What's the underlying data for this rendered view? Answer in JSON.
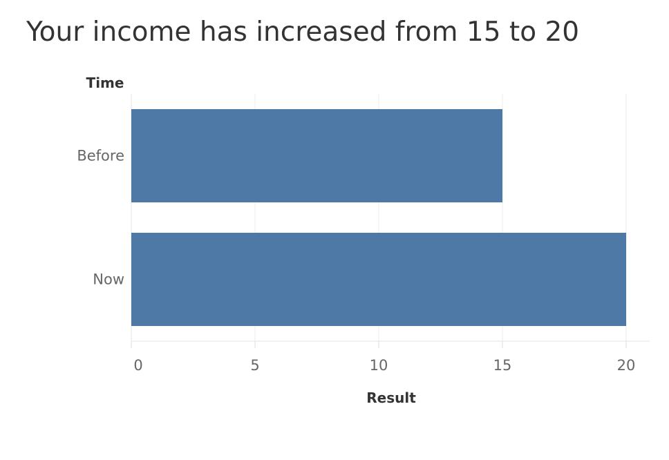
{
  "chart_data": {
    "type": "bar",
    "orientation": "horizontal",
    "title": "Your income has increased from 15 to 20",
    "categories": [
      "Before",
      "Now"
    ],
    "values": [
      15,
      20
    ],
    "xlabel": "Result",
    "ylabel": "Time",
    "xlim": [
      0,
      20
    ],
    "xticks": [
      0,
      5,
      10,
      15,
      20
    ],
    "grid": true,
    "bar_color": "#4e79a7"
  }
}
